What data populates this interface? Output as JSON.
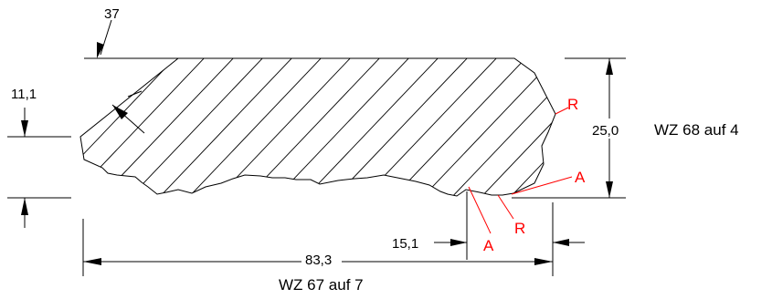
{
  "colors": {
    "line": "#000000",
    "annotation": "#ff0000"
  },
  "dimensions": {
    "angle_top": "37",
    "height_left": "11,1",
    "height_right": "25,0",
    "width_total": "83,3",
    "width_small": "15,1"
  },
  "notes": {
    "right": "WZ 68 auf 4",
    "bottom": "WZ 67 auf 7"
  },
  "markers": {
    "r_top": "R",
    "a_right": "A",
    "r_bottom": "R",
    "a_bottom": "A"
  }
}
